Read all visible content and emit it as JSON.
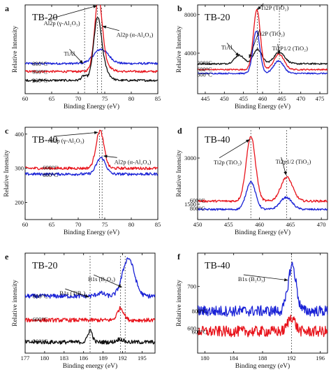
{
  "figure": {
    "panels": [
      {
        "id": "a",
        "letter": "a",
        "sample": "TB-20",
        "xlabel": "Binding Energy (eV)",
        "ylabel": "Relative Intensity"
      },
      {
        "id": "b",
        "letter": "b",
        "sample": "TB-20",
        "xlabel": "Binding Energy (eV)",
        "ylabel": "Relative Intensity"
      },
      {
        "id": "c",
        "letter": "c",
        "sample": "TB-40",
        "xlabel": "Binding Energy (eV)",
        "ylabel": "Relative Intensity"
      },
      {
        "id": "d",
        "letter": "d",
        "sample": "TB-40",
        "xlabel": "Binding Energy (eV)",
        "ylabel": "Relative Intensity"
      },
      {
        "id": "e",
        "letter": "e",
        "sample": "TB-20",
        "xlabel": "Binding energy (eV)",
        "ylabel": "Relative intensity"
      },
      {
        "id": "f",
        "letter": "f",
        "sample": "TB-40",
        "xlabel": "Binding energy (eV)",
        "ylabel": "Relative intensity"
      }
    ]
  },
  "colors": {
    "black": "#111111",
    "red": "#e8141c",
    "blue": "#1a22d6",
    "dashed": "#333333"
  },
  "chart_data": [
    {
      "panel": "a",
      "type": "line",
      "title": "",
      "xlabel": "Binding Energy (eV)",
      "ylabel": "Relative Intensity",
      "xlim": [
        60,
        85
      ],
      "ylim": [
        0,
        1
      ],
      "xticks": [
        60,
        65,
        70,
        75,
        80,
        85
      ],
      "yticks": [],
      "series": [
        {
          "name": "800°C",
          "color": "blue",
          "offset": 0.34,
          "noise": 0.012,
          "peaks": [
            [
              74.3,
              0.16,
              1.4
            ]
          ]
        },
        {
          "name": "600°C",
          "color": "red",
          "offset": 0.25,
          "noise": 0.012,
          "peaks": [
            [
              73.8,
              0.72,
              0.7
            ],
            [
              74.4,
              0.12,
              1.2
            ]
          ]
        },
        {
          "name": "200°C",
          "color": "black",
          "offset": 0.15,
          "noise": 0.012,
          "peaks": [
            [
              71.1,
              0.05,
              0.5
            ],
            [
              73.6,
              0.56,
              0.7
            ],
            [
              74.3,
              0.18,
              1.1
            ]
          ]
        }
      ],
      "series_labels": [
        {
          "text": "800°C",
          "x": 64.2,
          "y": 0.34
        },
        {
          "text": "600°C",
          "x": 64.2,
          "y": 0.25
        },
        {
          "text": "200°C",
          "x": 64.2,
          "y": 0.15
        }
      ],
      "vlines": [
        71.2,
        73.6,
        74.4
      ],
      "annotations": [
        {
          "text": "TiAl",
          "x": 67.3,
          "y": 0.43,
          "ax": 70.9,
          "ay": 0.34
        },
        {
          "text": "Al2p (γ-Al₂O₃)",
          "x": 63.5,
          "y": 0.77,
          "ax": 73.5,
          "ay": 0.99
        },
        {
          "text": "Al2p (α-Al₂O₃)",
          "x": 77.2,
          "y": 0.64,
          "ax": 74.6,
          "ay": 0.76
        }
      ]
    },
    {
      "panel": "b",
      "type": "line",
      "title": "",
      "xlabel": "Binding Energy (eV)",
      "ylabel": "Relative Intensity",
      "xlim": [
        443,
        477
      ],
      "ylim": [
        -200,
        9000
      ],
      "xticks": [
        445,
        450,
        455,
        460,
        465,
        470,
        475
      ],
      "yticks": [
        4000,
        8000
      ],
      "series": [
        {
          "name": "200°C",
          "color": "black",
          "offset": 2900,
          "noise": 80,
          "peaks": [
            [
              453.9,
              900,
              1.2
            ],
            [
              458.7,
              1500,
              1.1
            ],
            [
              464.4,
              1200,
              1.4
            ]
          ]
        },
        {
          "name": "600°C",
          "color": "red",
          "offset": 2300,
          "noise": 70,
          "peaks": [
            [
              458.5,
              6200,
              0.9
            ],
            [
              464.3,
              1600,
              1.3
            ]
          ]
        },
        {
          "name": "800°C",
          "color": "blue",
          "offset": 1900,
          "noise": 70,
          "peaks": [
            [
              458.4,
              4400,
              0.9
            ],
            [
              464.2,
              1300,
              1.3
            ]
          ]
        }
      ],
      "series_labels": [
        {
          "text": "200°C",
          "x": 446.8,
          "y": 3000
        },
        {
          "text": "600°C",
          "x": 446.8,
          "y": 2350
        },
        {
          "text": "800°C",
          "x": 446.8,
          "y": 1800
        }
      ],
      "vlines": [
        458.6,
        464.4
      ],
      "annotations": [
        {
          "text": "Ti2P (TiO₂)",
          "x": 459.5,
          "y": 8500,
          "ax": 458.7,
          "ay": 8500
        },
        {
          "text": "Ti2P (TiO₂)",
          "x": 458.5,
          "y": 5800,
          "ax": 456.5,
          "ay": 3500
        },
        {
          "text": "Ti2P1/2 (TiO₂)",
          "x": 462.5,
          "y": 4300,
          "ax": 464.4,
          "ay": 3900
        },
        {
          "text": "TiAl",
          "x": 449.2,
          "y": 4400,
          "ax": 453.8,
          "ay": 3700
        }
      ]
    },
    {
      "panel": "c",
      "type": "line",
      "title": "",
      "xlabel": "Binding Energy (eV)",
      "ylabel": "Relative Intensity",
      "xlim": [
        60,
        85
      ],
      "ylim": [
        150,
        420
      ],
      "xticks": [
        60,
        65,
        70,
        75,
        80,
        85
      ],
      "yticks": [
        200,
        300,
        400
      ],
      "series": [
        {
          "name": "600°C",
          "color": "red",
          "offset": 300,
          "noise": 4,
          "peaks": [
            [
              74.1,
              110,
              0.75
            ]
          ]
        },
        {
          "name": "800°C",
          "color": "blue",
          "offset": 283,
          "noise": 4,
          "peaks": [
            [
              74.3,
              48,
              0.85
            ]
          ]
        }
      ],
      "series_labels": [
        {
          "text": "600°C",
          "x": 66.2,
          "y": 302
        },
        {
          "text": "800°C",
          "x": 66.2,
          "y": 281
        }
      ],
      "vlines": [
        74.0,
        74.5
      ],
      "annotations": [
        {
          "text": "Al2p (γ-Al₂O₃)",
          "x": 64.3,
          "y": 375,
          "ax": 73.7,
          "ay": 405
        },
        {
          "text": "Al2p (α-Al₂O₃)",
          "x": 76.8,
          "y": 313,
          "ax": 74.8,
          "ay": 336
        }
      ]
    },
    {
      "panel": "d",
      "type": "line",
      "title": "",
      "xlabel": "Binding Energy (eV)",
      "ylabel": "Relative Intensity",
      "xlim": [
        450,
        471
      ],
      "ylim": [
        1000,
        4000
      ],
      "xticks": [
        450,
        455,
        460,
        465,
        470
      ],
      "yticks": [
        1500,
        3000
      ],
      "series": [
        {
          "name": "600°C",
          "color": "red",
          "offset": 1600,
          "noise": 35,
          "peaks": [
            [
              458.6,
              2100,
              0.75
            ],
            [
              464.4,
              780,
              0.95
            ]
          ]
        },
        {
          "name": "800°C",
          "color": "blue",
          "offset": 1330,
          "noise": 30,
          "peaks": [
            [
              458.6,
              900,
              0.75
            ],
            [
              464.3,
              390,
              0.95
            ]
          ]
        }
      ],
      "series_labels": [
        {
          "text": "600°C",
          "x": 451.2,
          "y": 1620
        },
        {
          "text": "800°C",
          "x": 451.2,
          "y": 1360
        }
      ],
      "vlines": [
        458.6,
        464.4
      ],
      "annotations": [
        {
          "text": "Ti2p (TiO₂)",
          "x": 452.6,
          "y": 2800,
          "ax": 458.4,
          "ay": 3600
        },
        {
          "text": "Ti2p1/2 (TiO₂)",
          "x": 462.6,
          "y": 2820,
          "ax": 464.3,
          "ay": 2450
        }
      ]
    },
    {
      "panel": "e",
      "type": "line",
      "title": "",
      "xlabel": "Binding energy (eV)",
      "ylabel": "Relative intensity",
      "xlim": [
        177,
        197
      ],
      "ylim": [
        0,
        1
      ],
      "xticks": [
        177,
        180,
        183,
        186,
        189,
        192,
        195
      ],
      "yticks": [],
      "series": [
        {
          "name": "800°C",
          "color": "blue",
          "offset": 0.57,
          "noise": 0.022,
          "peaks": [
            [
              192.9,
              0.38,
              0.9
            ],
            [
              188.6,
              0.03,
              0.6
            ]
          ]
        },
        {
          "name": "600°C",
          "color": "red",
          "offset": 0.33,
          "noise": 0.02,
          "peaks": [
            [
              191.7,
              0.12,
              0.5
            ]
          ]
        },
        {
          "name": "200°C",
          "color": "black",
          "offset": 0.11,
          "noise": 0.02,
          "peaks": [
            [
              187.0,
              0.12,
              0.35
            ],
            [
              191.6,
              0.03,
              0.5
            ]
          ]
        }
      ],
      "series_labels": [
        {
          "text": "800°C",
          "x": 180.5,
          "y": 0.57
        },
        {
          "text": "600°C",
          "x": 180.5,
          "y": 0.34
        },
        {
          "text": "200°C",
          "x": 180.5,
          "y": 0.12
        }
      ],
      "vlines": [
        187.0,
        191.7,
        192.4
      ],
      "annotations": [
        {
          "text": "B1s (TiB₂)",
          "x": 182.3,
          "y": 0.58,
          "ax": 186.8,
          "ay": 0.56
        },
        {
          "text": "B1s (B₂O₃)",
          "x": 186.7,
          "y": 0.72,
          "ax": 191.9,
          "ay": 0.66
        }
      ]
    },
    {
      "panel": "f",
      "type": "line",
      "title": "",
      "xlabel": "Binding energy (eV)",
      "ylabel": "Relative intensity",
      "xlim": [
        179,
        197
      ],
      "ylim": [
        540,
        780
      ],
      "xticks": [
        180,
        184,
        188,
        192,
        196
      ],
      "yticks": [
        600,
        700
      ],
      "series": [
        {
          "name": "800°C",
          "color": "blue",
          "offset": 641,
          "noise": 13,
          "peaks": [
            [
              192.1,
              110,
              0.55
            ]
          ]
        },
        {
          "name": "600°C",
          "color": "red",
          "offset": 592,
          "noise": 13,
          "peaks": [
            [
              192.0,
              35,
              0.5
            ]
          ]
        }
      ],
      "series_labels": [
        {
          "text": "800°C",
          "x": 180.3,
          "y": 641
        },
        {
          "text": "600°C",
          "x": 180.3,
          "y": 591
        }
      ],
      "vlines": [
        192.0
      ],
      "annotations": [
        {
          "text": "B1s (B₂O₃)",
          "x": 184.6,
          "y": 713,
          "ax": 191.5,
          "ay": 715
        }
      ]
    }
  ]
}
